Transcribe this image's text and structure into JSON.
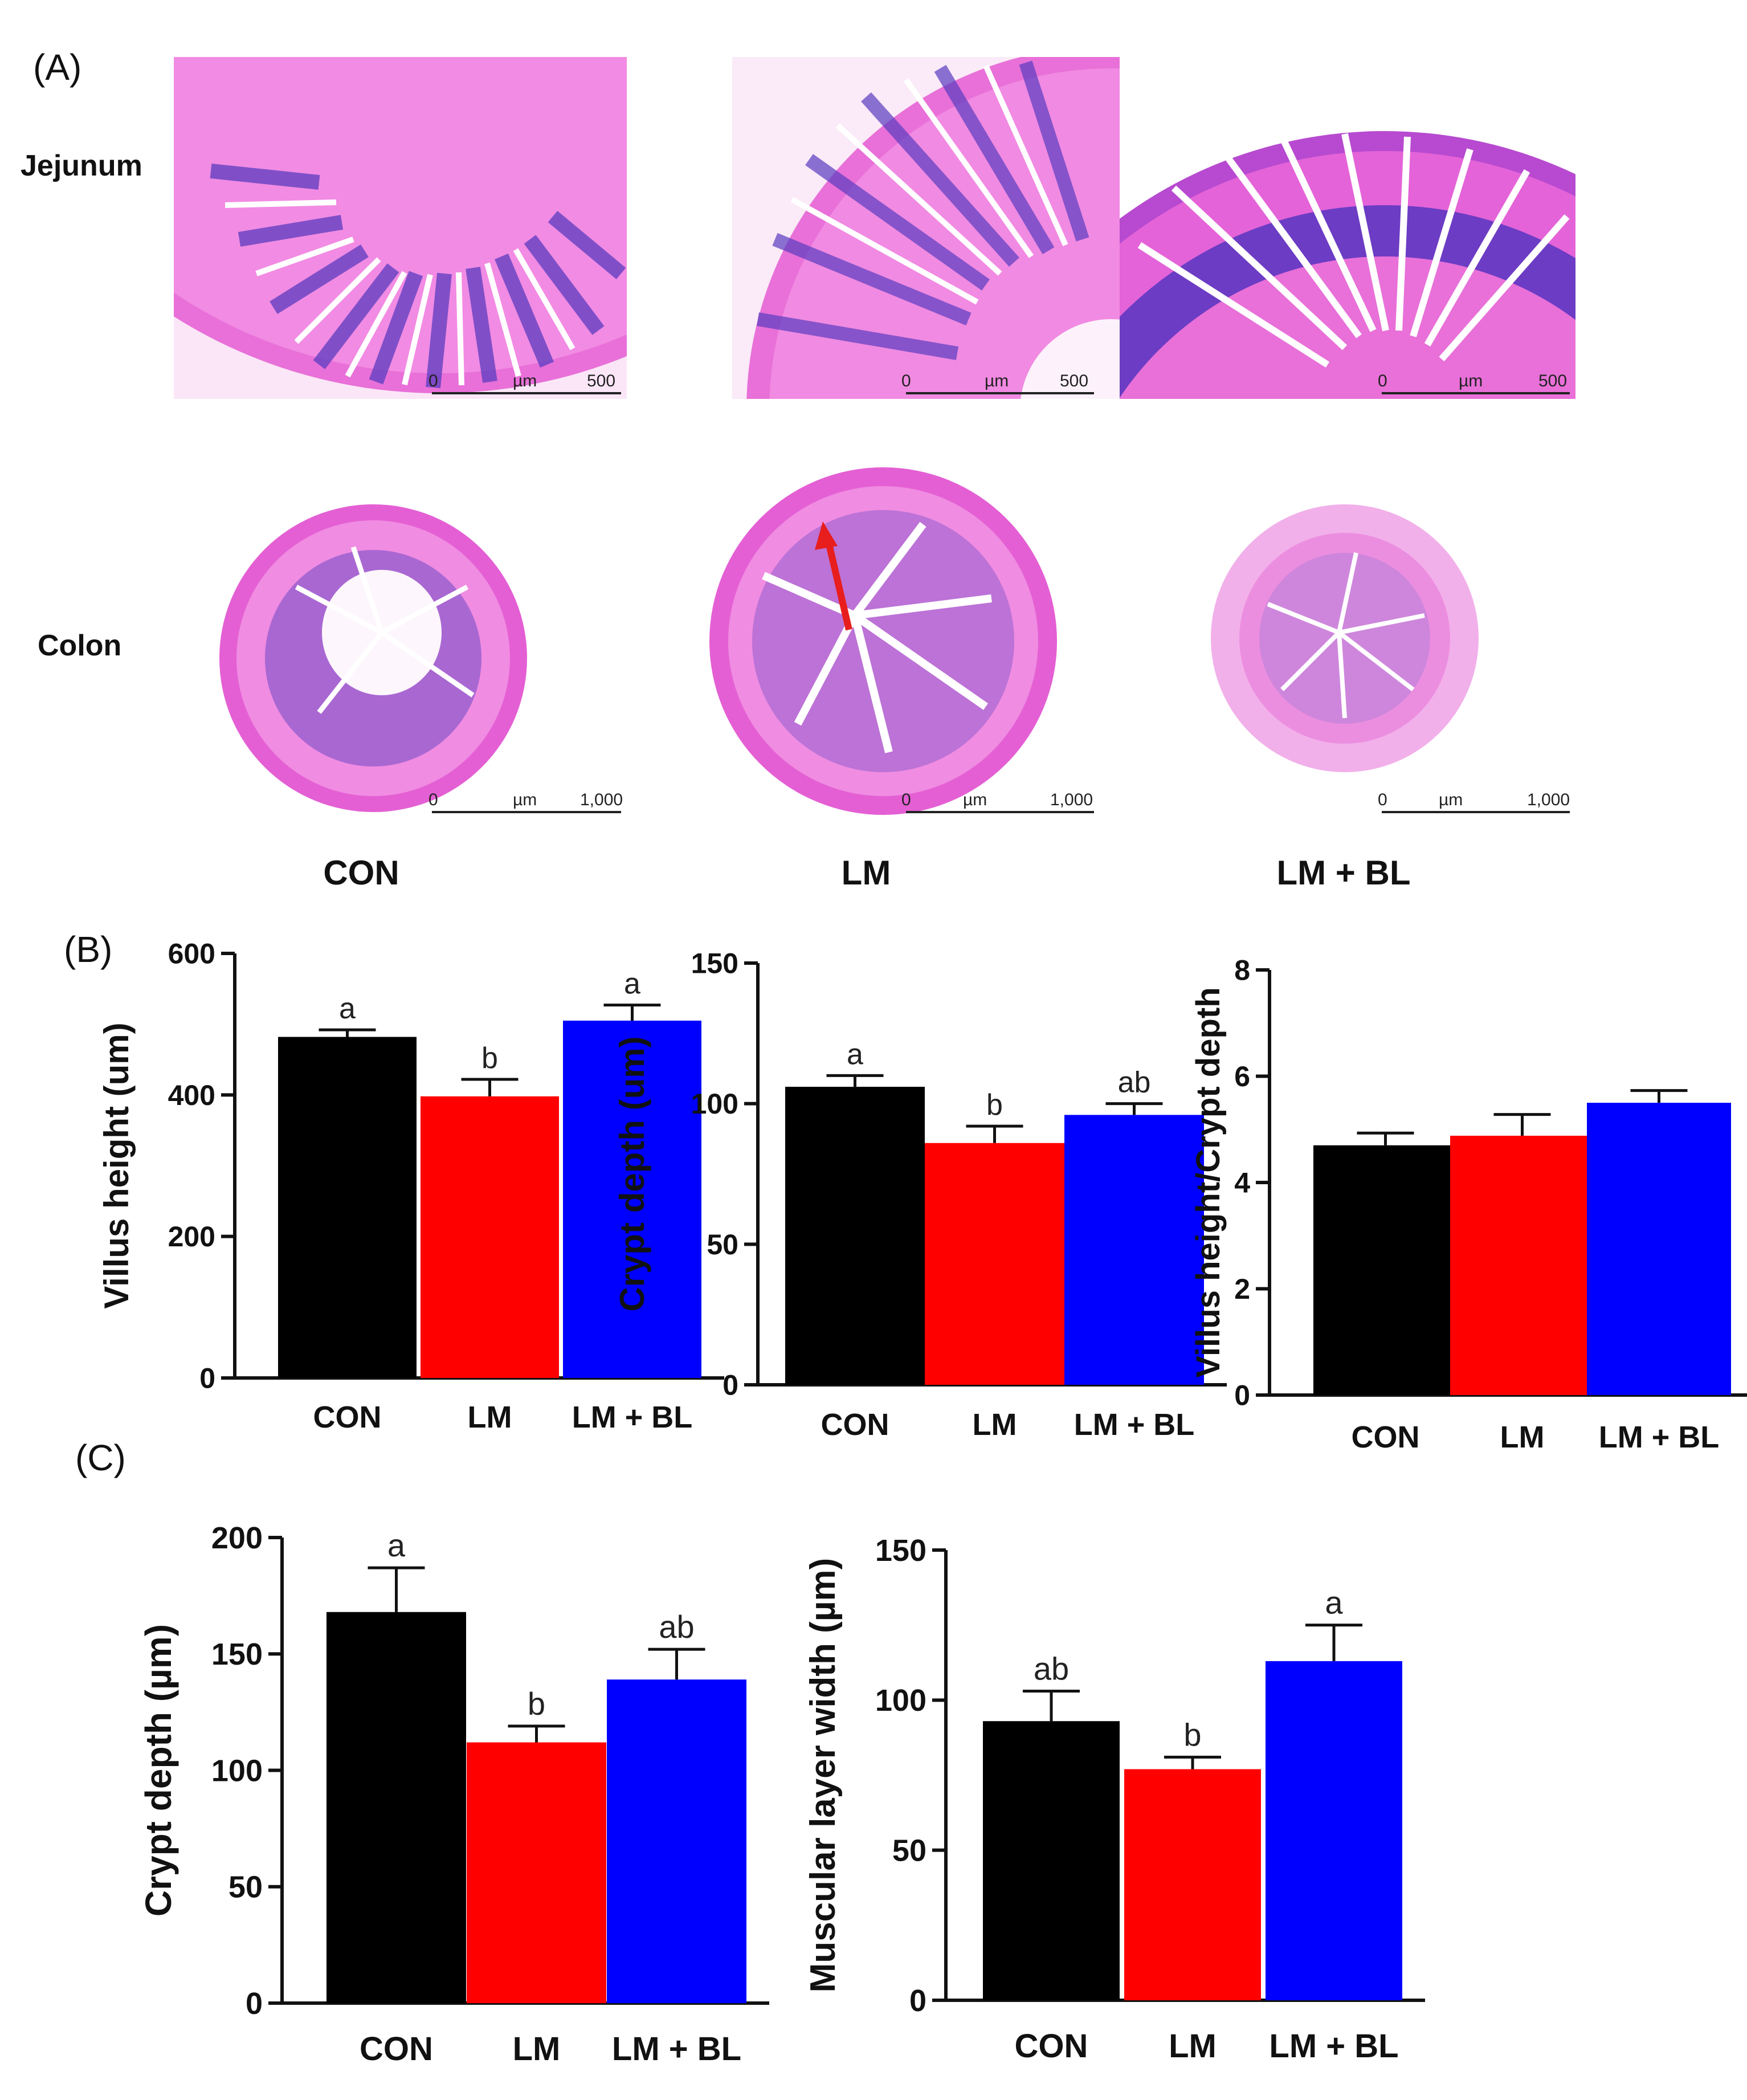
{
  "panel_labels": {
    "a": "(A)",
    "b": "(B)",
    "c": "(C)"
  },
  "histology": {
    "row_labels": [
      "Jejunum",
      "Colon"
    ],
    "group_labels": [
      "CON",
      "LM",
      "LM + BL"
    ],
    "scale_unit": "µm",
    "scale_zero": "0",
    "jejunum_scale_max": "500",
    "colon_scale_max": "1,000",
    "colors": {
      "tissue_pink": "#e75fd6",
      "tissue_light": "#f3b6ee",
      "nuclei_purple": "#5a3cc0",
      "arrow": "#e81e1e"
    }
  },
  "chart_data": [
    {
      "id": "b1",
      "type": "bar",
      "ylabel": "Villus height (um)",
      "categories": [
        "CON",
        "LM",
        "LM + BL"
      ],
      "values": [
        482,
        398,
        505
      ],
      "errors": [
        10,
        24,
        22
      ],
      "letters": [
        "a",
        "b",
        "a"
      ],
      "ylim": [
        0,
        600
      ],
      "yticks": [
        0,
        200,
        400,
        600
      ],
      "ytick_labels": [
        "0",
        "200",
        "400",
        "600"
      ]
    },
    {
      "id": "b2",
      "type": "bar",
      "ylabel": "Crypt depth (um)",
      "categories": [
        "CON",
        "LM",
        "LM + BL"
      ],
      "values": [
        106,
        86,
        96
      ],
      "errors": [
        4,
        6,
        4
      ],
      "letters": [
        "a",
        "b",
        "ab"
      ],
      "ylim": [
        0,
        150
      ],
      "yticks": [
        0,
        50,
        100,
        150
      ],
      "ytick_labels": [
        "0",
        "50",
        "100",
        "150"
      ]
    },
    {
      "id": "b3",
      "type": "bar",
      "ylabel": "Villus height/Crypt depth",
      "categories": [
        "CON",
        "LM",
        "LM + BL"
      ],
      "values": [
        4.7,
        4.88,
        5.5
      ],
      "errors": [
        0.23,
        0.4,
        0.23
      ],
      "letters": [
        "",
        "",
        ""
      ],
      "ylim": [
        0,
        8
      ],
      "yticks": [
        0,
        2,
        4,
        6,
        8
      ],
      "ytick_labels": [
        "0",
        "2",
        "4",
        "6",
        "8"
      ]
    },
    {
      "id": "c1",
      "type": "bar",
      "ylabel": "Crypt depth (µm)",
      "categories": [
        "CON",
        "LM",
        "LM + BL"
      ],
      "values": [
        168,
        112,
        139
      ],
      "errors": [
        19,
        7,
        13
      ],
      "letters": [
        "a",
        "b",
        "ab"
      ],
      "ylim": [
        0,
        200
      ],
      "yticks": [
        0,
        50,
        100,
        150,
        200
      ],
      "ytick_labels": [
        "0",
        "50",
        "100",
        "150",
        "200"
      ]
    },
    {
      "id": "c2",
      "type": "bar",
      "ylabel": "Muscular layer width (µm)",
      "categories": [
        "CON",
        "LM",
        "LM + BL"
      ],
      "values": [
        93,
        77,
        113
      ],
      "errors": [
        10,
        4,
        12
      ],
      "letters": [
        "ab",
        "b",
        "a"
      ],
      "ylim": [
        0,
        150
      ],
      "yticks": [
        0,
        50,
        100,
        150
      ],
      "ytick_labels": [
        "0",
        "50",
        "100",
        "150"
      ]
    }
  ],
  "bar_colors": [
    "#000000",
    "#ff0000",
    "#0000ff"
  ]
}
